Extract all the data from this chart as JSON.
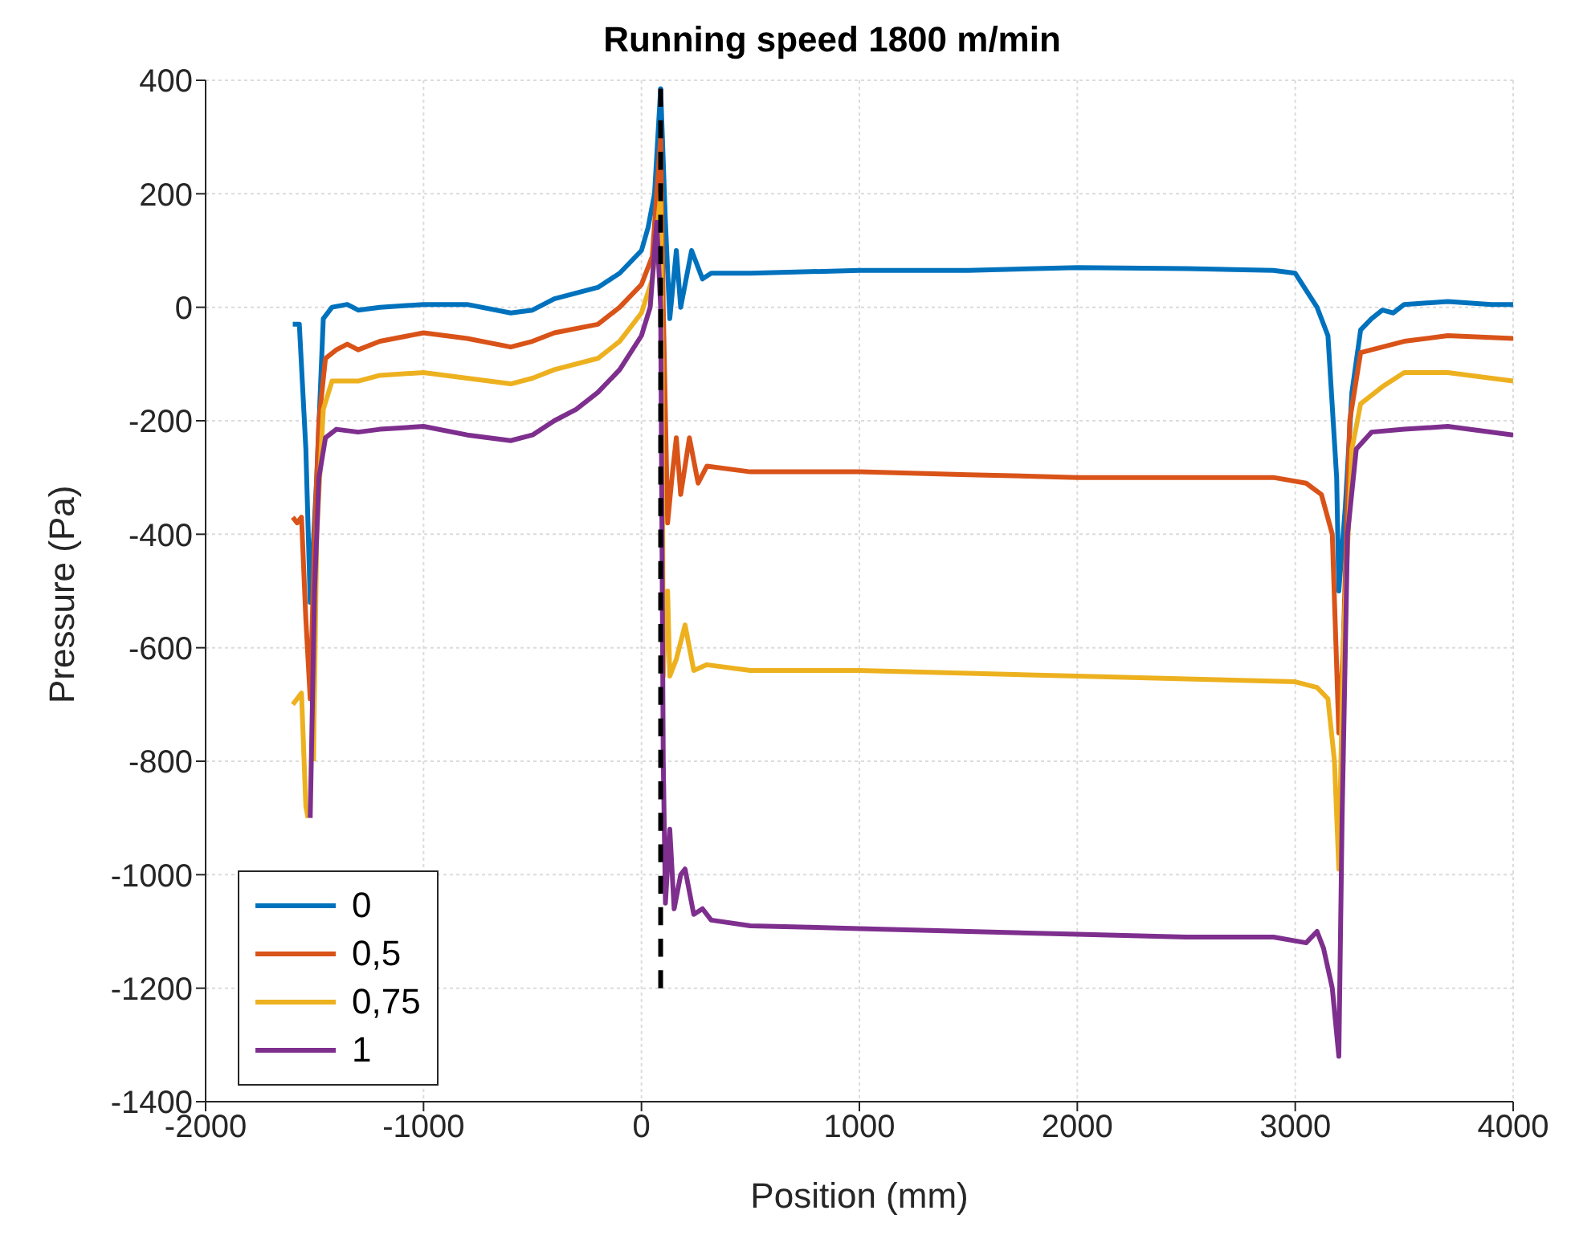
{
  "chart_data": {
    "type": "line",
    "title": "Running speed 1800 m/min",
    "xlabel": "Position (mm)",
    "ylabel": "Pressure (Pa)",
    "xlim": [
      -2000,
      4000
    ],
    "xticks": [
      -2000,
      -1000,
      0,
      1000,
      2000,
      3000,
      4000
    ],
    "ylim": [
      -1400,
      400
    ],
    "yticks": [
      -1400,
      -1200,
      -1000,
      -800,
      -600,
      -400,
      -200,
      0,
      200,
      400
    ],
    "grid": true,
    "legend": "bottom left",
    "marker": "none",
    "line_style": "solid",
    "series": [
      {
        "name": "0",
        "color": "#0072bd",
        "x": [
          -1600,
          -1570,
          -1540,
          -1520,
          -1490,
          -1460,
          -1420,
          -1350,
          -1300,
          -1200,
          -1000,
          -800,
          -600,
          -500,
          -400,
          -200,
          -100,
          0,
          30,
          60,
          88,
          110,
          130,
          160,
          180,
          230,
          280,
          320,
          500,
          1000,
          1500,
          2000,
          2500,
          2900,
          3000,
          3100,
          3150,
          3190,
          3200,
          3230,
          3260,
          3300,
          3350,
          3400,
          3450,
          3500,
          3700,
          3900,
          4000
        ],
        "values": [
          -30,
          -30,
          -250,
          -520,
          -300,
          -20,
          0,
          5,
          -5,
          0,
          5,
          5,
          -10,
          -5,
          15,
          35,
          60,
          100,
          140,
          200,
          385,
          150,
          -20,
          100,
          0,
          100,
          50,
          60,
          60,
          65,
          65,
          70,
          68,
          65,
          60,
          0,
          -50,
          -300,
          -500,
          -350,
          -150,
          -40,
          -20,
          -5,
          -10,
          5,
          10,
          5,
          5
        ]
      },
      {
        "name": "0,5",
        "color": "#d95319",
        "x": [
          -1600,
          -1580,
          -1560,
          -1540,
          -1520,
          -1500,
          -1480,
          -1450,
          -1400,
          -1350,
          -1300,
          -1200,
          -1000,
          -800,
          -600,
          -500,
          -400,
          -200,
          -100,
          0,
          50,
          88,
          100,
          120,
          140,
          160,
          180,
          220,
          260,
          300,
          500,
          1000,
          1500,
          2000,
          2500,
          2900,
          3050,
          3120,
          3170,
          3200,
          3220,
          3250,
          3300,
          3400,
          3500,
          3700,
          4000
        ],
        "values": [
          -370,
          -380,
          -370,
          -550,
          -690,
          -400,
          -200,
          -90,
          -75,
          -65,
          -75,
          -60,
          -45,
          -55,
          -70,
          -60,
          -45,
          -30,
          0,
          40,
          90,
          300,
          0,
          -380,
          -300,
          -230,
          -330,
          -230,
          -310,
          -280,
          -290,
          -290,
          -295,
          -300,
          -300,
          -300,
          -310,
          -330,
          -400,
          -750,
          -600,
          -200,
          -80,
          -70,
          -60,
          -50,
          -55
        ]
      },
      {
        "name": "0,75",
        "color": "#edb120",
        "x": [
          -1600,
          -1580,
          -1560,
          -1540,
          -1530,
          -1520,
          -1505,
          -1490,
          -1460,
          -1420,
          -1300,
          -1200,
          -1000,
          -800,
          -600,
          -500,
          -400,
          -200,
          -100,
          0,
          50,
          88,
          95,
          100,
          110,
          120,
          130,
          160,
          200,
          240,
          300,
          500,
          1000,
          1500,
          2000,
          2500,
          3000,
          3100,
          3150,
          3180,
          3200,
          3220,
          3260,
          3300,
          3400,
          3500,
          3700,
          4000
        ],
        "values": [
          -700,
          -690,
          -680,
          -880,
          -900,
          null,
          -800,
          -400,
          -180,
          -130,
          -130,
          -120,
          -115,
          -125,
          -135,
          -125,
          -110,
          -90,
          -60,
          -10,
          50,
          200,
          -100,
          -650,
          -550,
          -500,
          -650,
          -620,
          -560,
          -640,
          -630,
          -640,
          -640,
          -645,
          -650,
          -655,
          -660,
          -670,
          -690,
          -800,
          -990,
          -600,
          -250,
          -170,
          -140,
          -115,
          -115,
          -130
        ]
      },
      {
        "name": "1",
        "color": "#7e2f8e",
        "x": [
          -1520,
          -1500,
          -1480,
          -1450,
          -1400,
          -1300,
          -1200,
          -1000,
          -800,
          -600,
          -500,
          -400,
          -300,
          -200,
          -100,
          0,
          40,
          70,
          88,
          100,
          110,
          130,
          150,
          180,
          200,
          240,
          280,
          320,
          500,
          1000,
          1500,
          2000,
          2500,
          2900,
          3050,
          3100,
          3130,
          3170,
          3200,
          3215,
          3240,
          3280,
          3350,
          3500,
          3700,
          4000
        ],
        "values": [
          -900,
          -500,
          -300,
          -230,
          -215,
          -220,
          -215,
          -210,
          -225,
          -235,
          -225,
          -200,
          -180,
          -150,
          -110,
          -50,
          0,
          150,
          0,
          -800,
          -1050,
          -920,
          -1060,
          -1000,
          -990,
          -1070,
          -1060,
          -1080,
          -1090,
          -1095,
          -1100,
          -1105,
          -1110,
          -1110,
          -1120,
          -1100,
          -1130,
          -1200,
          -1320,
          -900,
          -400,
          -250,
          -220,
          -215,
          -210,
          -225
        ]
      },
      {
        "color": "#000000",
        "line_style": "dashed",
        "x": [
          88,
          88
        ],
        "values": [
          -1200,
          385
        ]
      }
    ]
  }
}
